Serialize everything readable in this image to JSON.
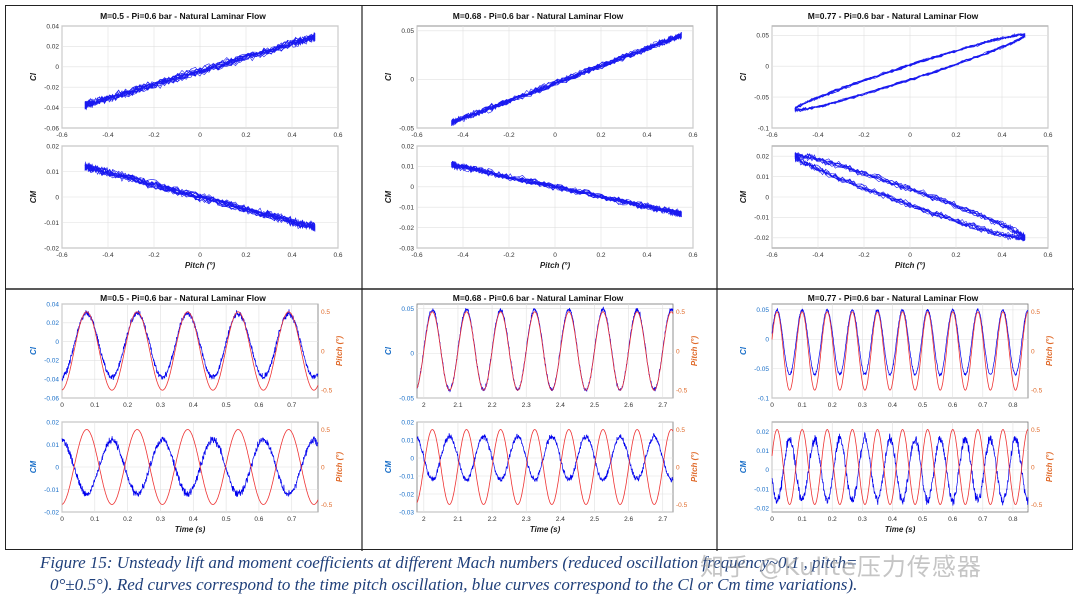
{
  "colors": {
    "cl_series": "#0000ee",
    "pitch_series": "#ee3333",
    "left_axis": "#1a6fc8",
    "right_axis": "#e06a2a",
    "grid": "#e0e0e0"
  },
  "caption": {
    "line1": "Figure 15: Unsteady lift and moment coefficients at different Mach numbers (reduced oscillation frequency~0.1 , pitch=",
    "line2": "0°±0.5°). Red curves correspond to the time pitch oscillation, blue curves correspond to the Cl or Cm time variations)."
  },
  "watermark": "知乎 @Kulite压力传感器",
  "chart_data": [
    {
      "id": "p0",
      "kind": "hyst",
      "type": "scatter",
      "title": "M=0.5 -  Pi=0.6 bar -  Natural Laminar Flow",
      "top": {
        "ylabel": "Cl",
        "xticks": [
          "-0.6",
          "-0.4",
          "-0.2",
          "0",
          "0.2",
          "0.4",
          "0.6"
        ],
        "yticks": [
          "-0.06",
          "-0.04",
          "-0.02",
          "0",
          "0.02",
          "0.04"
        ],
        "xlim": [
          -0.6,
          0.6
        ],
        "ylim": [
          -0.06,
          0.04
        ],
        "x_range": [
          -0.5,
          0.5
        ],
        "fit": [
          -0.004,
          0.067
        ],
        "spread": 0.005,
        "loop": 0
      },
      "bottom": {
        "ylabel": "CM",
        "xlabel": "Pitch (°)",
        "xticks": [
          "-0.6",
          "-0.4",
          "-0.2",
          "0",
          "0.2",
          "0.4",
          "0.6"
        ],
        "yticks": [
          "-0.02",
          "-0.01",
          "0",
          "0.01",
          "0.02"
        ],
        "xlim": [
          -0.6,
          0.6
        ],
        "ylim": [
          -0.02,
          0.02
        ],
        "x_range": [
          -0.5,
          0.5
        ],
        "fit": [
          0.0,
          -0.024
        ],
        "spread": 0.002,
        "loop": 0
      }
    },
    {
      "id": "p1",
      "kind": "hyst",
      "type": "scatter",
      "title": "M=0.68 -  Pi=0.6 bar -  Natural Laminar Flow",
      "top": {
        "ylabel": "Cl",
        "xticks": [
          "-0.6",
          "-0.4",
          "-0.2",
          "0",
          "0.2",
          "0.4",
          "0.6"
        ],
        "yticks": [
          "-0.05",
          "0",
          "0.05"
        ],
        "xlim": [
          -0.6,
          0.6
        ],
        "ylim": [
          -0.05,
          0.055
        ],
        "x_range": [
          -0.45,
          0.55
        ],
        "fit": [
          -0.004,
          0.09
        ],
        "spread": 0.004,
        "loop": 0
      },
      "bottom": {
        "ylabel": "CM",
        "xlabel": "Pitch (°)",
        "xticks": [
          "-0.6",
          "-0.4",
          "-0.2",
          "0",
          "0.2",
          "0.4",
          "0.6"
        ],
        "yticks": [
          "-0.03",
          "-0.02",
          "-0.01",
          "0",
          "0.01",
          "0.02"
        ],
        "xlim": [
          -0.6,
          0.6
        ],
        "ylim": [
          -0.03,
          0.02
        ],
        "x_range": [
          -0.45,
          0.55
        ],
        "fit": [
          0.0,
          -0.024
        ],
        "spread": 0.002,
        "loop": 0
      }
    },
    {
      "id": "p2",
      "kind": "hyst",
      "type": "scatter",
      "title": "M=0.77 -  Pi=0.6 bar -  Natural Laminar Flow",
      "top": {
        "ylabel": "Cl",
        "xticks": [
          "-0.6",
          "-0.4",
          "-0.2",
          "0",
          "0.2",
          "0.4",
          "0.6"
        ],
        "yticks": [
          "-0.1",
          "-0.05",
          "0",
          "0.05"
        ],
        "xlim": [
          -0.6,
          0.6
        ],
        "ylim": [
          -0.1,
          0.065
        ],
        "x_range": [
          -0.5,
          0.5
        ],
        "fit": [
          -0.01,
          0.12
        ],
        "spread": 0.003,
        "loop": 0.012
      },
      "bottom": {
        "ylabel": "CM",
        "xlabel": "Pitch (°)",
        "xticks": [
          "-0.6",
          "-0.4",
          "-0.2",
          "0",
          "0.2",
          "0.4",
          "0.6"
        ],
        "yticks": [
          "-0.02",
          "-0.01",
          "0",
          "0.01",
          "0.02"
        ],
        "xlim": [
          -0.6,
          0.6
        ],
        "ylim": [
          -0.025,
          0.025
        ],
        "x_range": [
          -0.5,
          0.5
        ],
        "fit": [
          0.0,
          -0.04
        ],
        "spread": 0.002,
        "loop": 0.004
      }
    },
    {
      "id": "p3",
      "kind": "time",
      "type": "line",
      "title": "M=0.5 -  Pi=0.6 bar -  Natural Laminar Flow",
      "top": {
        "ylabel": "Cl",
        "y2label": "Pitch (°)",
        "xticks": [
          "0",
          "0.1",
          "0.2",
          "0.3",
          "0.4",
          "0.5",
          "0.6",
          "0.7"
        ],
        "yticks": [
          "-0.06",
          "-0.04",
          "-0.02",
          "0",
          "0.02",
          "0.04"
        ],
        "y2ticks": [
          "-0.5",
          "0",
          "0.5"
        ],
        "xlim": [
          0,
          0.78
        ],
        "ylim": [
          -0.06,
          0.04
        ],
        "y2lim": [
          -0.6,
          0.6
        ],
        "freq": 6.5,
        "phase": -1.5,
        "offset": -0.004,
        "amp": 0.034,
        "pitch_phase": -1.5,
        "noise": 0.004
      },
      "bottom": {
        "ylabel": "CM",
        "xlabel": "Time (s)",
        "y2label": "Pitch (°)",
        "xticks": [
          "0",
          "0.1",
          "0.2",
          "0.3",
          "0.4",
          "0.5",
          "0.6",
          "0.7"
        ],
        "yticks": [
          "-0.02",
          "-0.01",
          "0",
          "0.01",
          "0.02"
        ],
        "y2ticks": [
          "-0.5",
          "0",
          "0.5"
        ],
        "xlim": [
          0,
          0.78
        ],
        "ylim": [
          -0.02,
          0.02
        ],
        "y2lim": [
          -0.6,
          0.6
        ],
        "freq": 6.5,
        "phase": 1.64,
        "offset": 0.0,
        "amp": 0.012,
        "pitch_phase": -1.5,
        "noise": 0.002
      }
    },
    {
      "id": "p4",
      "kind": "time",
      "type": "line",
      "title": "M=0.68 -  Pi=0.6 bar -  Natural Laminar Flow",
      "top": {
        "ylabel": "Cl",
        "y2label": "Pitch (°)",
        "xticks": [
          "2",
          "2.1",
          "2.2",
          "2.3",
          "2.4",
          "2.5",
          "2.6",
          "2.7"
        ],
        "yticks": [
          "-0.05",
          "0",
          "0.05"
        ],
        "y2ticks": [
          "-0.5",
          "0",
          "0.5"
        ],
        "xlim": [
          1.98,
          2.73
        ],
        "ylim": [
          -0.05,
          0.055
        ],
        "y2lim": [
          -0.6,
          0.6
        ],
        "freq": 10,
        "phase": 0,
        "offset": 0.004,
        "amp": 0.045,
        "pitch_phase": 0,
        "noise": 0.003
      },
      "bottom": {
        "ylabel": "CM",
        "xlabel": "Time (s)",
        "y2label": "Pitch (°)",
        "xticks": [
          "2",
          "2.1",
          "2.2",
          "2.3",
          "2.4",
          "2.5",
          "2.6",
          "2.7"
        ],
        "yticks": [
          "-0.03",
          "-0.02",
          "-0.01",
          "0",
          "0.01",
          "0.02"
        ],
        "y2ticks": [
          "-0.5",
          "0",
          "0.5"
        ],
        "xlim": [
          1.98,
          2.73
        ],
        "ylim": [
          -0.03,
          0.02
        ],
        "y2lim": [
          -0.6,
          0.6
        ],
        "freq": 10,
        "phase": 3.14,
        "offset": 0.0,
        "amp": 0.012,
        "pitch_phase": 0,
        "noise": 0.002
      }
    },
    {
      "id": "p5",
      "kind": "time",
      "type": "line",
      "title": "M=0.77 -  Pi=0.6 bar -  Natural Laminar Flow",
      "top": {
        "ylabel": "Cl",
        "y2label": "Pitch (°)",
        "xticks": [
          "0",
          "0.1",
          "0.2",
          "0.3",
          "0.4",
          "0.5",
          "0.6",
          "0.7",
          "0.8"
        ],
        "yticks": [
          "-0.1",
          "-0.05",
          "0",
          "0.05"
        ],
        "y2ticks": [
          "-0.5",
          "0",
          "0.5"
        ],
        "xlim": [
          0,
          0.85
        ],
        "ylim": [
          -0.1,
          0.06
        ],
        "y2lim": [
          -0.6,
          0.6
        ],
        "freq": 12,
        "phase": 0.3,
        "offset": -0.005,
        "amp": 0.055,
        "pitch_phase": 0.3,
        "noise": 0.003
      },
      "bottom": {
        "ylabel": "CM",
        "xlabel": "Time (s)",
        "y2label": "Pitch (°)",
        "xticks": [
          "0",
          "0.1",
          "0.2",
          "0.3",
          "0.4",
          "0.5",
          "0.6",
          "0.7",
          "0.8"
        ],
        "yticks": [
          "-0.02",
          "-0.01",
          "0",
          "0.01",
          "0.02"
        ],
        "y2ticks": [
          "-0.5",
          "0",
          "0.5"
        ],
        "xlim": [
          0,
          0.85
        ],
        "ylim": [
          -0.022,
          0.025
        ],
        "y2lim": [
          -0.6,
          0.6
        ],
        "freq": 12,
        "phase": 3.44,
        "offset": 0.0,
        "amp": 0.016,
        "pitch_phase": 0.3,
        "noise": 0.003
      }
    }
  ]
}
